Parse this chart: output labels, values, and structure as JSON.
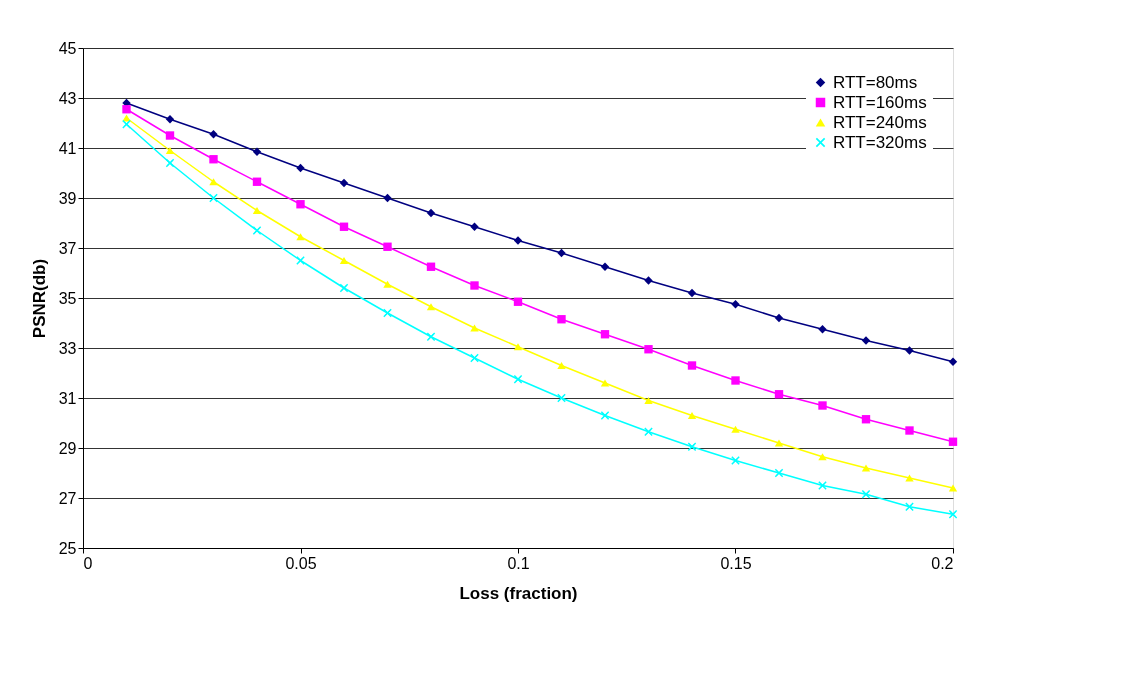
{
  "chart_data": {
    "type": "line",
    "xlabel": "Loss (fraction)",
    "ylabel": "PSNR(db)",
    "x": [
      0.01,
      0.02,
      0.03,
      0.04,
      0.05,
      0.06,
      0.07,
      0.08,
      0.09,
      0.1,
      0.11,
      0.12,
      0.13,
      0.14,
      0.15,
      0.16,
      0.17,
      0.18,
      0.19,
      0.2
    ],
    "series": [
      {
        "name": "RTT=80ms",
        "color": "#000080",
        "marker": "diamond",
        "values": [
          42.8,
          42.15,
          41.55,
          40.85,
          40.2,
          39.6,
          39.0,
          38.4,
          37.85,
          37.3,
          36.8,
          36.25,
          35.7,
          35.2,
          34.75,
          34.2,
          33.75,
          33.3,
          32.9,
          32.45
        ]
      },
      {
        "name": "RTT=160ms",
        "color": "#ff00ff",
        "marker": "square",
        "values": [
          42.55,
          41.5,
          40.55,
          39.65,
          38.75,
          37.85,
          37.05,
          36.25,
          35.5,
          34.85,
          34.15,
          33.55,
          32.95,
          32.3,
          31.7,
          31.15,
          30.7,
          30.15,
          29.7,
          29.25
        ]
      },
      {
        "name": "RTT=240ms",
        "color": "#ffff00",
        "marker": "triangle",
        "values": [
          42.2,
          40.9,
          39.65,
          38.5,
          37.45,
          36.5,
          35.55,
          34.65,
          33.8,
          33.05,
          32.3,
          31.6,
          30.9,
          30.3,
          29.75,
          29.2,
          28.65,
          28.2,
          27.8,
          27.4
        ]
      },
      {
        "name": "RTT=320ms",
        "color": "#00ffff",
        "marker": "cross",
        "values": [
          41.95,
          40.4,
          39.0,
          37.7,
          36.5,
          35.4,
          34.4,
          33.45,
          32.6,
          31.75,
          31.0,
          30.3,
          29.65,
          29.05,
          28.5,
          28.0,
          27.5,
          27.15,
          26.65,
          26.35
        ]
      }
    ],
    "xlim": [
      0,
      0.2
    ],
    "xticks": [
      0,
      0.05,
      0.1,
      0.15,
      0.2
    ],
    "ylim": [
      25,
      45
    ],
    "yticks": [
      25,
      27,
      29,
      31,
      33,
      35,
      37,
      39,
      41,
      43,
      45
    ],
    "grid": "y",
    "legend": "top right",
    "line_style": "solid"
  }
}
